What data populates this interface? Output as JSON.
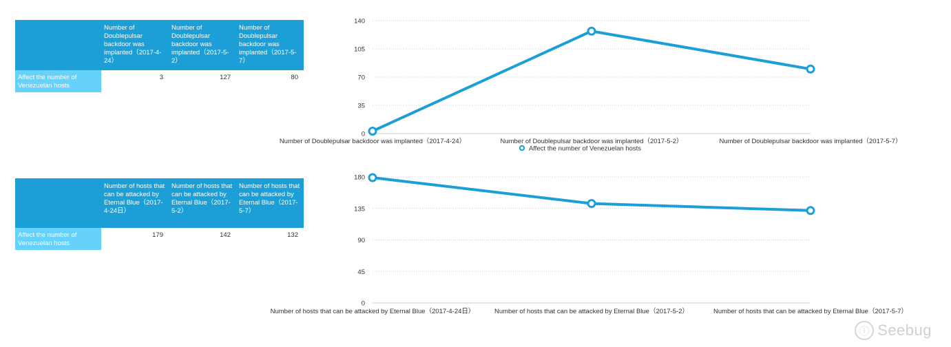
{
  "tables": [
    {
      "columns": [
        "Number of Doublepulsar backdoor was implanted（2017-4-24）",
        "Number of Doublepulsar backdoor was implanted（2017-5-2）",
        "Number of Doublepulsar backdoor was implanted（2017-5-7）"
      ],
      "row_label": "Affect the number of Venezuelan hosts",
      "values": [
        "3",
        "127",
        "80"
      ]
    },
    {
      "columns": [
        "Number of hosts that can be attacked by Eternal Blue（2017-4-24日）",
        "Number of hosts that can be attacked by Eternal Blue（2017-5-2）",
        "Number of hosts that can be attacked by Eternal Blue（2017-5-7）"
      ],
      "row_label": "Affect the number of Venezuelan hosts",
      "values": [
        "179",
        "142",
        "132"
      ]
    }
  ],
  "chart_data": [
    {
      "type": "line",
      "categories": [
        "Number of Doublepulsar backdoor was implanted（2017-4-24）",
        "Number of Doublepulsar backdoor was implanted（2017-5-2）",
        "Number of Doublepulsar backdoor was implanted（2017-5-7）"
      ],
      "series": [
        {
          "name": "Affect the number of Venezuelan hosts",
          "values": [
            3,
            127,
            80
          ]
        }
      ],
      "ylim": [
        0,
        140
      ],
      "yticks": [
        0,
        35,
        70,
        105,
        140
      ],
      "grid": "horizontal-dotted",
      "legend": "bottom-center",
      "color": "#1b9fd6"
    },
    {
      "type": "line",
      "categories": [
        "Number of hosts that can be attacked by Eternal Blue（2017-4-24日）",
        "Number of hosts that can be attacked by Eternal Blue（2017-5-2）",
        "Number of hosts that can be attacked by Eternal Blue（2017-5-7）"
      ],
      "series": [
        {
          "values": [
            179,
            142,
            132
          ]
        }
      ],
      "ylim": [
        0,
        180
      ],
      "yticks": [
        0,
        45,
        90,
        135,
        180
      ],
      "grid": "horizontal-dotted",
      "legend": "none",
      "color": "#1b9fd6"
    }
  ],
  "watermark": {
    "text": "Seebug",
    "icon": "seebug-logo-icon"
  }
}
